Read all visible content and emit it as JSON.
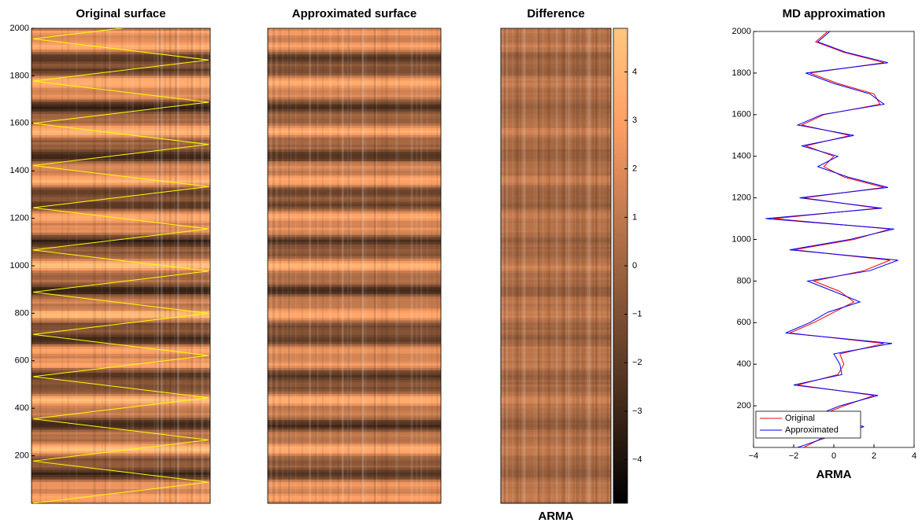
{
  "chart_data": [
    {
      "type": "heatmap",
      "title": "Original surface",
      "ylim": [
        0,
        2000
      ],
      "yticks": [
        200,
        400,
        600,
        800,
        1000,
        1200,
        1400,
        1600,
        1800,
        2000
      ],
      "colormap": "copper",
      "contrast": 0.9,
      "overlay_color": "#ffff00"
    },
    {
      "type": "heatmap",
      "title": "Approximated surface",
      "ylim": [
        0,
        2000
      ],
      "colormap": "copper",
      "contrast": 0.75
    },
    {
      "type": "heatmap",
      "title": "Difference",
      "xlabel": "ARMA",
      "ylim": [
        0,
        2000
      ],
      "colormap": "copper",
      "contrast": 0.2,
      "clim": [
        -4.9,
        4.9
      ],
      "cticks": [
        {
          "value": -4,
          "label": "−4"
        },
        {
          "value": -3,
          "label": "−3"
        },
        {
          "value": -2,
          "label": "−2"
        },
        {
          "value": -1,
          "label": "−1"
        },
        0,
        1,
        2,
        3,
        4
      ]
    },
    {
      "type": "line",
      "title": "MD approximation",
      "xlabel": "ARMA",
      "xlim": [
        -4,
        4
      ],
      "xticks": [
        {
          "value": -4,
          "label": "−4"
        },
        {
          "value": -2,
          "label": "−2"
        },
        0,
        2,
        4
      ],
      "ylim": [
        0,
        2000
      ],
      "yticks": [
        200,
        400,
        600,
        800,
        1000,
        1200,
        1400,
        1600,
        1800,
        2000
      ],
      "legend": "lower left",
      "y": [
        0,
        50,
        100,
        150,
        200,
        250,
        300,
        350,
        400,
        450,
        500,
        550,
        600,
        650,
        700,
        750,
        800,
        850,
        900,
        950,
        1000,
        1050,
        1100,
        1150,
        1200,
        1250,
        1300,
        1350,
        1400,
        1450,
        1500,
        1550,
        1600,
        1650,
        1700,
        1750,
        1800,
        1850,
        1900,
        1950,
        2000
      ],
      "series": [
        {
          "name": "Original",
          "color": "#ff0000",
          "values": [
            -1.5,
            -0.5,
            1.0,
            -0.8,
            0.5,
            2.0,
            -1.8,
            0.2,
            0.5,
            0.3,
            2.5,
            -2.2,
            -1.0,
            0.0,
            1.0,
            0.3,
            -1.0,
            1.5,
            2.8,
            -2.0,
            1.0,
            2.8,
            -3.0,
            2.2,
            -1.5,
            2.5,
            0.5,
            -0.5,
            0.0,
            -1.4,
            0.8,
            -1.6,
            -0.5,
            2.3,
            2.0,
            0.2,
            -1.2,
            2.5,
            0.5,
            -0.9,
            -0.3
          ]
        },
        {
          "name": "Approximated",
          "color": "#0000ff",
          "values": [
            -1.8,
            -0.3,
            1.5,
            -1.0,
            0.3,
            2.2,
            -2.0,
            0.4,
            0.3,
            0.0,
            2.9,
            -2.4,
            -1.2,
            -0.3,
            1.3,
            0.0,
            -1.3,
            1.8,
            3.2,
            -2.2,
            0.8,
            3.0,
            -3.4,
            2.4,
            -1.7,
            2.7,
            0.7,
            -0.8,
            0.2,
            -1.6,
            1.0,
            -1.8,
            -0.6,
            2.5,
            1.8,
            0.0,
            -1.4,
            2.7,
            0.6,
            -0.8,
            -0.2
          ]
        }
      ]
    }
  ]
}
